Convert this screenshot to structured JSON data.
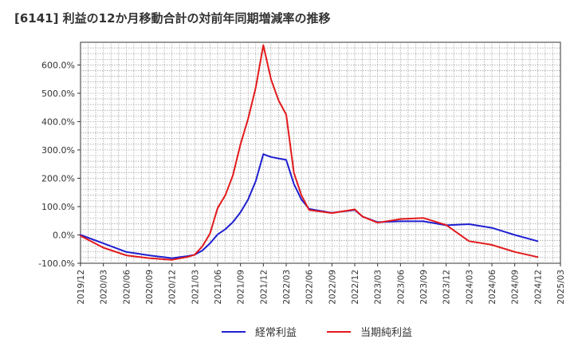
{
  "chart_data": {
    "type": "line",
    "title": "[6141]  利益の12か月移動合計の対前年同期増減率の推移",
    "xlabel": "",
    "ylabel": "",
    "ylim": [
      -100,
      680
    ],
    "y_ticks": [
      {
        "value": -100,
        "label": "-100.0%"
      },
      {
        "value": 0,
        "label": "0.0%"
      },
      {
        "value": 100,
        "label": "100.0%"
      },
      {
        "value": 200,
        "label": "200.0%"
      },
      {
        "value": 300,
        "label": "300.0%"
      },
      {
        "value": 400,
        "label": "400.0%"
      },
      {
        "value": 500,
        "label": "500.0%"
      },
      {
        "value": 600,
        "label": "600.0%"
      }
    ],
    "x_ticks": [
      "2019/12",
      "2020/03",
      "2020/06",
      "2020/09",
      "2020/12",
      "2021/03",
      "2021/06",
      "2021/09",
      "2021/12",
      "2022/03",
      "2022/06",
      "2022/09",
      "2022/12",
      "2023/03",
      "2023/06",
      "2023/09",
      "2023/12",
      "2024/03",
      "2024/06",
      "2024/09",
      "2024/12",
      "2025/03"
    ],
    "x_range_months": [
      0,
      63
    ],
    "grid": true,
    "legend_position": "bottom",
    "series": [
      {
        "name": "経常利益",
        "color": "#1f1fd1",
        "points": [
          [
            0,
            0
          ],
          [
            3,
            -30
          ],
          [
            6,
            -60
          ],
          [
            9,
            -72
          ],
          [
            12,
            -82
          ],
          [
            14,
            -75
          ],
          [
            15,
            -70
          ],
          [
            16,
            -55
          ],
          [
            17,
            -30
          ],
          [
            18,
            2
          ],
          [
            19,
            20
          ],
          [
            20,
            45
          ],
          [
            21,
            80
          ],
          [
            22,
            125
          ],
          [
            23,
            190
          ],
          [
            24,
            285
          ],
          [
            25,
            275
          ],
          [
            26,
            270
          ],
          [
            27,
            265
          ],
          [
            28,
            180
          ],
          [
            29,
            125
          ],
          [
            30,
            92
          ],
          [
            33,
            78
          ],
          [
            36,
            88
          ],
          [
            37,
            65
          ],
          [
            39,
            45
          ],
          [
            42,
            48
          ],
          [
            45,
            48
          ],
          [
            48,
            34
          ],
          [
            51,
            38
          ],
          [
            54,
            25
          ],
          [
            57,
            0
          ],
          [
            60,
            -22
          ]
        ]
      },
      {
        "name": "当期純利益",
        "color": "#e31a1c",
        "points": [
          [
            0,
            -3
          ],
          [
            3,
            -45
          ],
          [
            6,
            -72
          ],
          [
            9,
            -82
          ],
          [
            12,
            -88
          ],
          [
            14,
            -78
          ],
          [
            15,
            -70
          ],
          [
            16,
            -40
          ],
          [
            17,
            5
          ],
          [
            18,
            95
          ],
          [
            19,
            140
          ],
          [
            20,
            210
          ],
          [
            21,
            320
          ],
          [
            22,
            410
          ],
          [
            23,
            520
          ],
          [
            24,
            670
          ],
          [
            25,
            550
          ],
          [
            26,
            475
          ],
          [
            27,
            425
          ],
          [
            28,
            220
          ],
          [
            29,
            140
          ],
          [
            30,
            88
          ],
          [
            33,
            77
          ],
          [
            36,
            90
          ],
          [
            37,
            65
          ],
          [
            39,
            43
          ],
          [
            42,
            56
          ],
          [
            45,
            60
          ],
          [
            48,
            35
          ],
          [
            51,
            -22
          ],
          [
            54,
            -35
          ],
          [
            57,
            -60
          ],
          [
            60,
            -78
          ]
        ]
      }
    ]
  }
}
